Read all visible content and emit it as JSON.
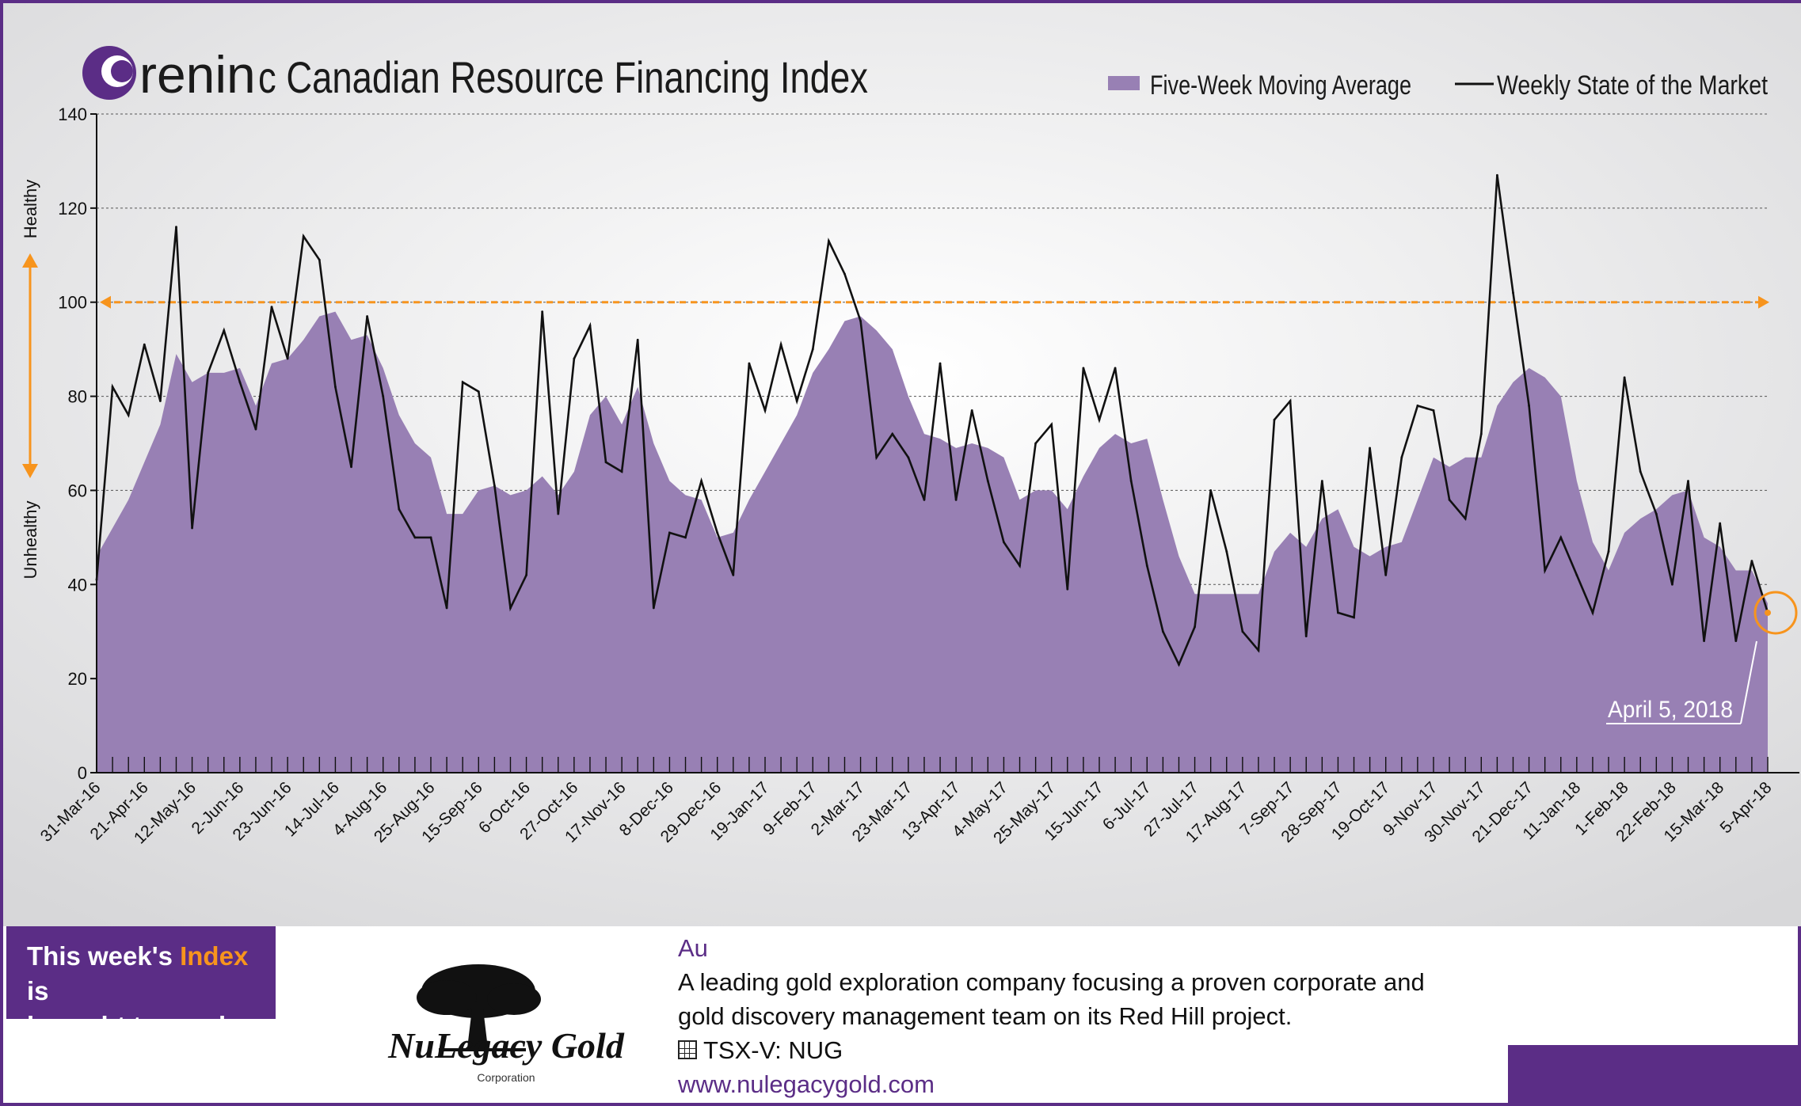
{
  "header": {
    "brand": "renin",
    "title_suffix": "c Canadian Resource Financing Index"
  },
  "chart_data": {
    "type": "area",
    "title": "Oreninc Canadian Resource Financing Index",
    "ylim": [
      0,
      140
    ],
    "yticks": [
      0,
      20,
      40,
      60,
      80,
      100,
      120,
      140
    ],
    "reference_line": 100,
    "grid": true,
    "legend_position": "top-right",
    "y_annotation_top": "Healthy",
    "y_annotation_bottom": "Unhealthy",
    "callout": "April 5, 2018",
    "xtick_labels": [
      "31-Mar-16",
      "21-Apr-16",
      "12-May-16",
      "2-Jun-16",
      "23-Jun-16",
      "14-Jul-16",
      "4-Aug-16",
      "25-Aug-16",
      "15-Sep-16",
      "6-Oct-16",
      "27-Oct-16",
      "17-Nov-16",
      "8-Dec-16",
      "29-Dec-16",
      "19-Jan-17",
      "9-Feb-17",
      "2-Mar-17",
      "23-Mar-17",
      "13-Apr-17",
      "4-May-17",
      "25-May-17",
      "15-Jun-17",
      "6-Jul-17",
      "27-Jul-17",
      "17-Aug-17",
      "7-Sep-17",
      "28-Sep-17",
      "19-Oct-17",
      "9-Nov-17",
      "30-Nov-17",
      "21-Dec-17",
      "11-Jan-18",
      "1-Feb-18",
      "22-Feb-18",
      "15-Mar-18",
      "5-Apr-18"
    ],
    "series": [
      {
        "name": "Five-Week Moving Average",
        "kind": "area",
        "color": "#9880b4",
        "values": [
          46,
          52,
          58,
          66,
          74,
          89,
          83,
          85,
          85,
          86,
          78,
          87,
          88,
          92,
          97,
          98,
          92,
          93,
          86,
          76,
          70,
          67,
          55,
          55,
          60,
          61,
          59,
          60,
          63,
          59,
          64,
          76,
          80,
          74,
          82,
          70,
          62,
          59,
          58,
          50,
          51,
          58,
          64,
          70,
          76,
          85,
          90,
          96,
          97,
          94,
          90,
          80,
          72,
          71,
          69,
          70,
          69,
          67,
          58,
          60,
          60,
          56,
          63,
          69,
          72,
          70,
          71,
          58,
          46,
          38,
          38,
          38,
          38,
          38,
          47,
          51,
          48,
          54,
          56,
          48,
          46,
          48,
          49,
          58,
          67,
          65,
          67,
          67,
          78,
          83,
          86,
          84,
          80,
          62,
          49,
          43,
          51,
          54,
          56,
          59,
          60,
          50,
          48,
          43,
          43,
          36
        ]
      },
      {
        "name": "Weekly State of the Market",
        "kind": "line",
        "color": "#111111",
        "values": [
          41,
          82,
          76,
          91,
          79,
          116,
          52,
          85,
          94,
          83,
          73,
          99,
          88,
          114,
          109,
          82,
          65,
          97,
          80,
          56,
          50,
          50,
          35,
          83,
          81,
          61,
          35,
          42,
          98,
          55,
          88,
          95,
          66,
          64,
          92,
          35,
          51,
          50,
          62,
          51,
          42,
          87,
          77,
          91,
          79,
          90,
          113,
          106,
          96,
          67,
          72,
          67,
          58,
          87,
          58,
          77,
          62,
          49,
          44,
          70,
          74,
          39,
          86,
          75,
          86,
          62,
          44,
          30,
          23,
          31,
          60,
          47,
          30,
          26,
          75,
          79,
          29,
          62,
          34,
          33,
          69,
          42,
          67,
          78,
          77,
          58,
          54,
          72,
          127,
          102,
          78,
          43,
          50,
          42,
          34,
          47,
          84,
          64,
          55,
          40,
          62,
          28,
          53,
          28,
          45,
          34
        ]
      }
    ]
  },
  "sponsor": {
    "line1_prefix": "This week's ",
    "line1_highlight": "Index",
    "line1_suffix": " is",
    "line2": "brought to you by:",
    "company_name": "NuLegacy Gold",
    "company_sub": "Corporation",
    "symbol": "Au",
    "description_line1": "A leading gold exploration company focusing a proven corporate and",
    "description_line2": "gold discovery management team on its Red Hill project.",
    "ticker": "TSX-V:  NUG",
    "website": "www.nulegacygold.com"
  },
  "colors": {
    "brand_purple": "#5b2d86",
    "area_fill": "#9880b4",
    "reference_orange": "#f7941d",
    "line": "#111111"
  }
}
